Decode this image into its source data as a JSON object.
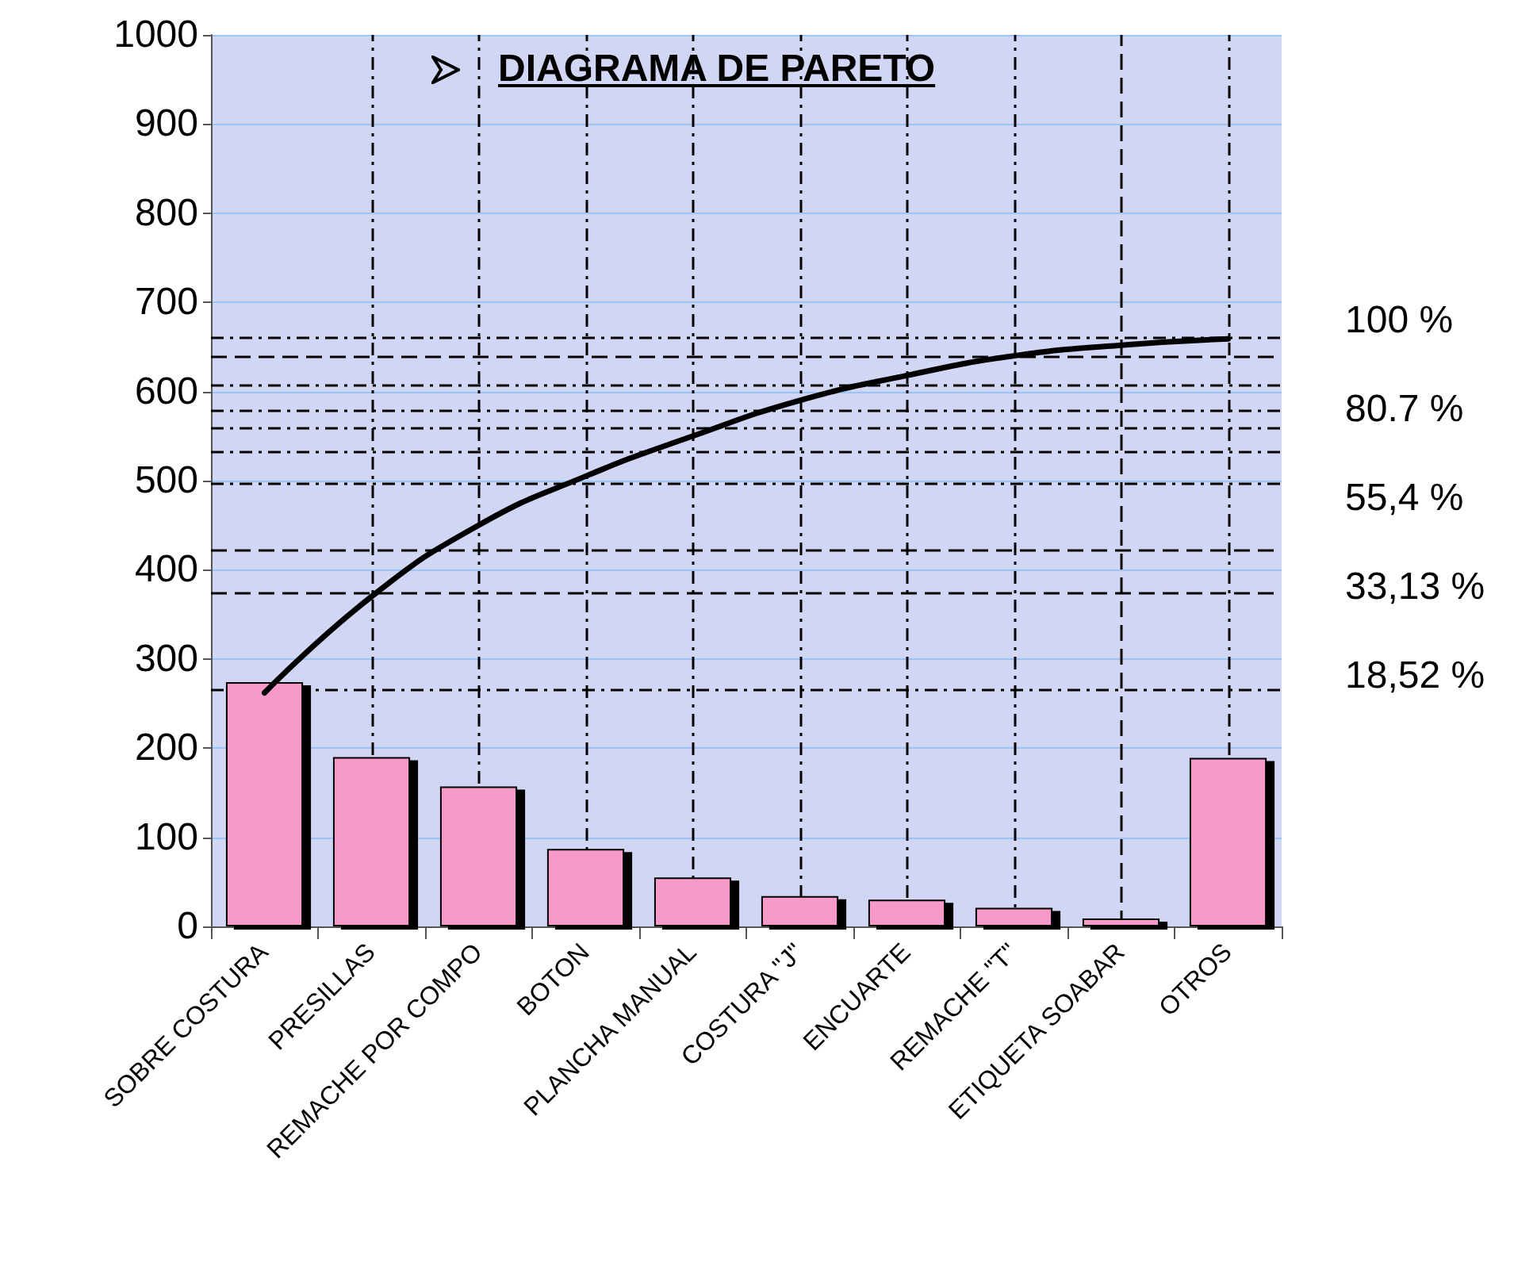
{
  "chart_data": {
    "type": "bar",
    "title": "DIAGRAMA DE PARETO",
    "categories": [
      "SOBRE COSTURA",
      "PRESILLAS",
      "REMACHE POR COMPO",
      "BOTON",
      "PLANCHA MANUAL",
      "COSTURA \"J\"",
      "ENCUARTE",
      "REMACHE \"T\"",
      "ETIQUETA SOABAR",
      "OTROS"
    ],
    "series": [
      {
        "color": "#f799c9",
        "values": [
          274,
          190,
          157,
          87,
          55,
          34,
          30,
          21,
          9,
          189
        ]
      },
      {
        "type": "line",
        "color": "#000000",
        "values": [
          262,
          370,
          450,
          505,
          550,
          590,
          618,
          640,
          652,
          659
        ]
      }
    ],
    "ylim": [
      0,
      1000
    ],
    "yticks": [
      0,
      100,
      200,
      300,
      400,
      500,
      600,
      700,
      800,
      900,
      1000
    ],
    "grid": "y",
    "marker": "none",
    "annotations": [
      "100 %",
      "80.7 %",
      "55,4 %",
      "33,13 %",
      "18,52 %"
    ],
    "ref_lines": [
      {
        "axis": "y",
        "value": 266,
        "label": null,
        "line_style": "dashdot"
      },
      {
        "axis": "y",
        "value": 375,
        "label": null,
        "line_style": "dashed"
      },
      {
        "axis": "y",
        "value": 422,
        "label": null,
        "line_style": "dashed"
      },
      {
        "axis": "y",
        "value": 496,
        "label": null,
        "line_style": "dashdot"
      },
      {
        "axis": "y",
        "value": 532,
        "label": null,
        "line_style": "dashdot"
      },
      {
        "axis": "y",
        "value": 559,
        "label": null,
        "line_style": "dashdot"
      },
      {
        "axis": "y",
        "value": 578,
        "label": null,
        "line_style": "dashdot"
      },
      {
        "axis": "y",
        "value": 607,
        "label": null,
        "line_style": "dashdot"
      },
      {
        "axis": "y",
        "value": 639,
        "label": null,
        "line_style": "dashed"
      },
      {
        "axis": "y",
        "value": 660,
        "label": null,
        "line_style": "dashdot"
      },
      {
        "axis": "x",
        "value": "PRESILLAS",
        "label": null,
        "line_style": "dashdot"
      },
      {
        "axis": "x",
        "value": "REMACHE POR COMPO",
        "label": null,
        "line_style": "dashdot"
      },
      {
        "axis": "x",
        "value": "BOTON",
        "label": null,
        "line_style": "dashdot"
      },
      {
        "axis": "x",
        "value": "PLANCHA MANUAL",
        "label": null,
        "line_style": "dashdot"
      },
      {
        "axis": "x",
        "value": "COSTURA \"J\"",
        "label": null,
        "line_style": "dashdot"
      },
      {
        "axis": "x",
        "value": "ENCUARTE",
        "label": null,
        "line_style": "dashdot"
      },
      {
        "axis": "x",
        "value": "REMACHE \"T\"",
        "label": null,
        "line_style": "dashdot"
      },
      {
        "axis": "x",
        "value": "ETIQUETA SOABAR",
        "label": null,
        "line_style": "dashed"
      },
      {
        "axis": "x",
        "value": "OTROS",
        "label": null,
        "line_style": "dashdot"
      }
    ]
  }
}
